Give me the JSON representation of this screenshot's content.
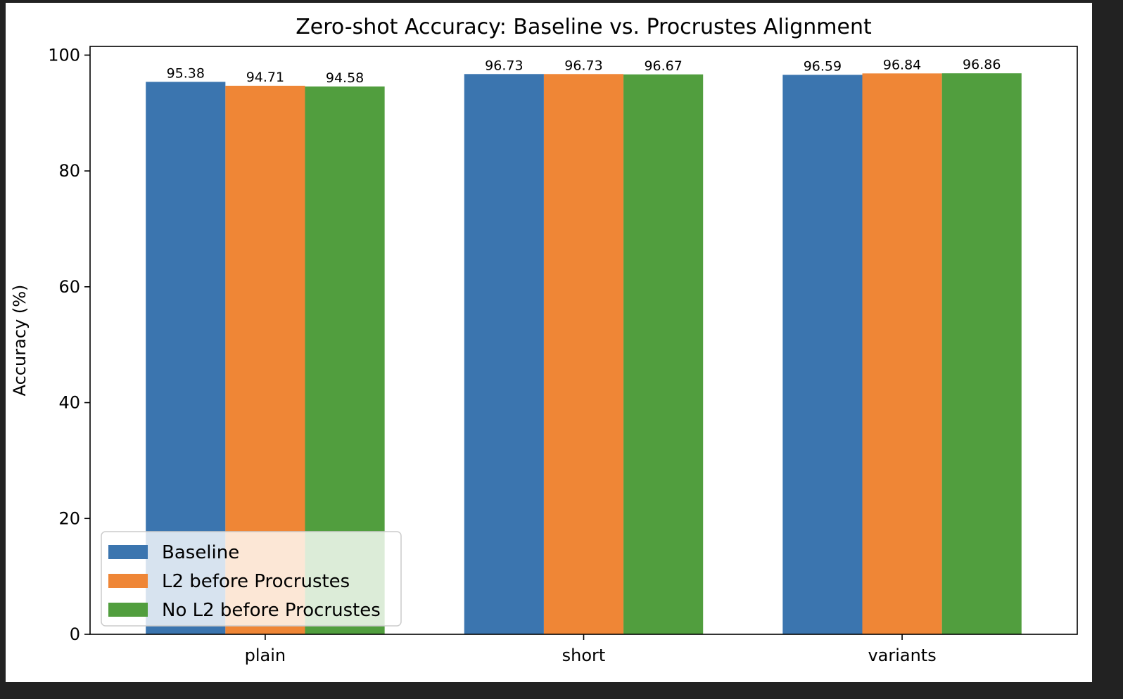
{
  "chart_data": {
    "type": "bar",
    "title": "Zero-shot Accuracy: Baseline vs. Procrustes Alignment",
    "xlabel": "",
    "ylabel": "Accuracy (%)",
    "ylim": [
      0,
      101.5
    ],
    "yticks": [
      0,
      20,
      40,
      60,
      80,
      100
    ],
    "categories": [
      "plain",
      "short",
      "variants"
    ],
    "series": [
      {
        "name": "Baseline",
        "color": "#3b75af",
        "values": [
          95.38,
          96.73,
          96.59
        ]
      },
      {
        "name": "L2 before Procrustes",
        "color": "#ef8636",
        "values": [
          94.71,
          96.73,
          96.84
        ]
      },
      {
        "name": "No L2 before Procrustes",
        "color": "#519e3e",
        "values": [
          94.58,
          96.67,
          96.86
        ]
      }
    ],
    "bar_labels": true,
    "grid": false,
    "legend_position": "lower-left"
  }
}
